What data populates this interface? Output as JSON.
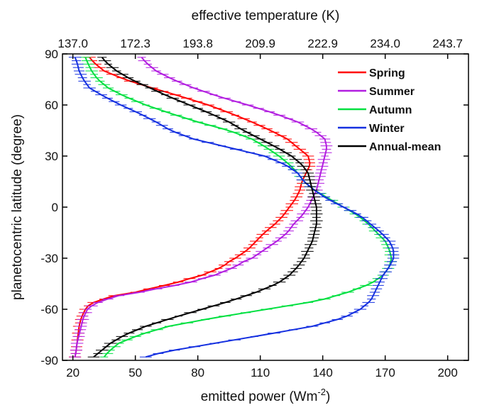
{
  "chart_data": {
    "type": "line",
    "orientation": "x-value-y-latitude",
    "xlabel": "emitted power (Wm",
    "xlabel_sup": "-2",
    "xlabel_end": ")",
    "x2label": "effective temperature (K)",
    "ylabel": "planetocentric latitude (degree)",
    "xlim": [
      15,
      210
    ],
    "ylim": [
      -90,
      90
    ],
    "x_ticks": [
      20,
      50,
      80,
      110,
      140,
      170,
      200
    ],
    "x_tick_labels": [
      "20",
      "50",
      "80",
      "110",
      "140",
      "170",
      "200"
    ],
    "y_ticks": [
      -90,
      -60,
      -30,
      0,
      30,
      60,
      90
    ],
    "y_tick_labels": [
      "-90",
      "-60",
      "-30",
      "0",
      "30",
      "60",
      "90"
    ],
    "x2_ticks": [
      20,
      50,
      80,
      110,
      140,
      170,
      200
    ],
    "x2_tick_labels": [
      "137.0",
      "172.3",
      "193.8",
      "209.9",
      "222.9",
      "234.0",
      "243.7"
    ],
    "grid": false,
    "legend_position": "top-right",
    "error_bars": "horizontal",
    "series": [
      {
        "name": "Spring",
        "color": "#ff0000",
        "latitude": [
          -88,
          -85,
          -80,
          -75,
          -70,
          -65,
          -60,
          -57,
          -55,
          -52,
          -50,
          -47,
          -45,
          -42,
          -40,
          -37,
          -35,
          -32,
          -30,
          -25,
          -20,
          -15,
          -10,
          -5,
          0,
          5,
          10,
          15,
          20,
          25,
          30,
          35,
          40,
          45,
          50,
          55,
          60,
          65,
          70,
          75,
          80,
          85,
          88
        ],
        "power": [
          21,
          21.5,
          22,
          22.5,
          23,
          24,
          26,
          28,
          32,
          40,
          50,
          60,
          68,
          76,
          82,
          88,
          92,
          95,
          98,
          104,
          108,
          112,
          117,
          121,
          124,
          127,
          129,
          130,
          132,
          134,
          133,
          128,
          123,
          115,
          106,
          96,
          85,
          72,
          58,
          45,
          35,
          30,
          28
        ]
      },
      {
        "name": "Summer",
        "color": "#b21ee0",
        "latitude": [
          -88,
          -85,
          -80,
          -75,
          -70,
          -65,
          -60,
          -57,
          -55,
          -52,
          -50,
          -47,
          -45,
          -42,
          -40,
          -37,
          -35,
          -32,
          -30,
          -25,
          -20,
          -15,
          -10,
          -5,
          0,
          5,
          10,
          15,
          20,
          25,
          30,
          35,
          40,
          45,
          50,
          55,
          60,
          65,
          70,
          75,
          80,
          85,
          88
        ],
        "power": [
          21,
          21.5,
          22,
          23,
          24,
          25,
          27,
          30,
          34,
          42,
          52,
          64,
          74,
          82,
          88,
          94,
          98,
          102,
          106,
          112,
          118,
          123,
          126,
          130,
          133,
          135,
          137,
          138,
          139,
          140,
          141,
          142,
          141,
          136,
          128,
          117,
          104,
          90,
          78,
          68,
          60,
          55,
          53
        ]
      },
      {
        "name": "Autumn",
        "color": "#00e040",
        "latitude": [
          -88,
          -85,
          -80,
          -75,
          -70,
          -65,
          -60,
          -55,
          -50,
          -45,
          -40,
          -35,
          -30,
          -25,
          -20,
          -15,
          -10,
          -5,
          0,
          5,
          10,
          15,
          20,
          25,
          30,
          35,
          40,
          45,
          50,
          55,
          60,
          65,
          70,
          75,
          80,
          85,
          88
        ],
        "power": [
          35,
          37,
          42,
          52,
          66,
          88,
          113,
          138,
          152,
          163,
          169,
          172,
          173,
          172,
          170,
          166,
          162,
          157,
          150,
          143,
          136,
          131,
          128,
          124,
          119,
          113,
          106,
          95,
          80,
          67,
          55,
          45,
          37,
          32,
          29,
          27,
          26
        ]
      },
      {
        "name": "Winter",
        "color": "#1530e0",
        "latitude": [
          -88,
          -85,
          -80,
          -75,
          -70,
          -65,
          -60,
          -55,
          -50,
          -45,
          -40,
          -35,
          -30,
          -25,
          -20,
          -15,
          -10,
          -5,
          0,
          5,
          10,
          15,
          20,
          25,
          30,
          35,
          40,
          45,
          50,
          55,
          60,
          65,
          70,
          75,
          80,
          85,
          88
        ],
        "power": [
          55,
          64,
          88,
          112,
          135,
          150,
          158,
          163,
          165,
          167,
          169,
          172,
          174,
          174,
          172,
          168,
          163,
          158,
          150,
          142,
          136,
          131,
          128,
          122,
          112,
          95,
          78,
          67,
          60,
          52,
          43,
          35,
          28,
          25,
          23,
          22,
          21
        ]
      },
      {
        "name": "Annual-mean",
        "color": "#000000",
        "latitude": [
          -88,
          -85,
          -80,
          -75,
          -70,
          -65,
          -60,
          -55,
          -50,
          -45,
          -40,
          -35,
          -30,
          -25,
          -20,
          -15,
          -10,
          -5,
          0,
          5,
          10,
          15,
          20,
          25,
          30,
          35,
          40,
          45,
          50,
          55,
          60,
          65,
          70,
          75,
          80,
          85,
          88
        ],
        "power": [
          30,
          33,
          38,
          45,
          55,
          68,
          82,
          96,
          108,
          118,
          124,
          128,
          131,
          133,
          135,
          136,
          137,
          137,
          137,
          136,
          135,
          134,
          133,
          130,
          125,
          118,
          110,
          102,
          95,
          86,
          76,
          66,
          57,
          48,
          41,
          36,
          34
        ]
      }
    ]
  }
}
